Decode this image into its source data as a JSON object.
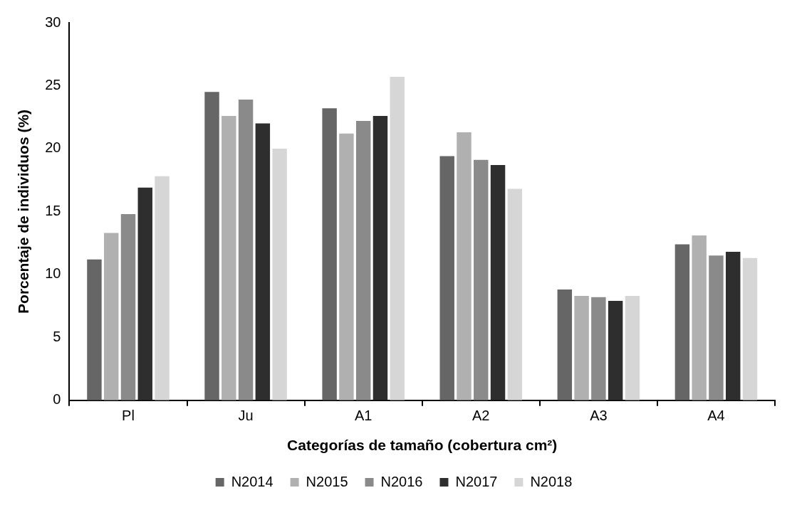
{
  "chart_data": {
    "type": "bar",
    "xlabel": "Categorías de tamaño (cobertura cm²)",
    "ylabel": "Porcentaje de individuos (%)",
    "categories": [
      "Pl",
      "Ju",
      "A1",
      "A2",
      "A3",
      "A4"
    ],
    "series": [
      {
        "name": "N2014",
        "color": "#666666",
        "values": [
          11.2,
          24.5,
          23.2,
          19.4,
          8.8,
          12.4
        ]
      },
      {
        "name": "N2015",
        "color": "#b0b0b0",
        "values": [
          13.3,
          22.6,
          21.2,
          21.3,
          8.3,
          13.1
        ]
      },
      {
        "name": "N2016",
        "color": "#8a8a8a",
        "values": [
          14.8,
          23.9,
          22.2,
          19.1,
          8.2,
          11.5
        ]
      },
      {
        "name": "N2017",
        "color": "#2e2e2e",
        "values": [
          16.9,
          22.0,
          22.6,
          18.7,
          7.9,
          11.8
        ]
      },
      {
        "name": "N2018",
        "color": "#d6d6d6",
        "values": [
          17.8,
          20.0,
          25.7,
          16.8,
          8.3,
          11.3
        ]
      }
    ],
    "ylim": [
      0,
      30
    ],
    "yticks": [
      0,
      5,
      10,
      15,
      20,
      25,
      30
    ],
    "grid": false,
    "legend": "bottom"
  }
}
